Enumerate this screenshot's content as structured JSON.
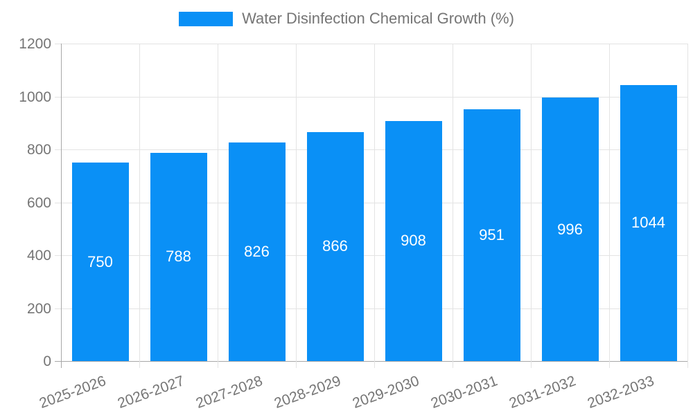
{
  "chart_data": {
    "type": "bar",
    "title": "Water Disinfection Chemical Growth (%)",
    "legend": [
      "Water Disinfection Chemical Growth (%)"
    ],
    "legend_position": "top",
    "categories": [
      "2025-2026",
      "2026-2027",
      "2027-2028",
      "2028-2029",
      "2029-2030",
      "2030-2031",
      "2031-2032",
      "2032-2033"
    ],
    "values": [
      750,
      788,
      826,
      866,
      908,
      951,
      996,
      1044
    ],
    "bar_value_labels": [
      "750",
      "788",
      "826",
      "866",
      "908",
      "951",
      "996",
      "1044"
    ],
    "xlabel": "",
    "ylabel": "",
    "ylim": [
      0,
      1200
    ],
    "yticks": [
      0,
      200,
      400,
      600,
      800,
      1000,
      1200
    ],
    "grid": true,
    "x_tick_rotation": -20,
    "colors": {
      "accent": "#0a90f6",
      "grid": "#e3e3e3",
      "axis": "#a7a7a7",
      "tick_text": "#757575",
      "bar_label": "#ffffff"
    }
  }
}
